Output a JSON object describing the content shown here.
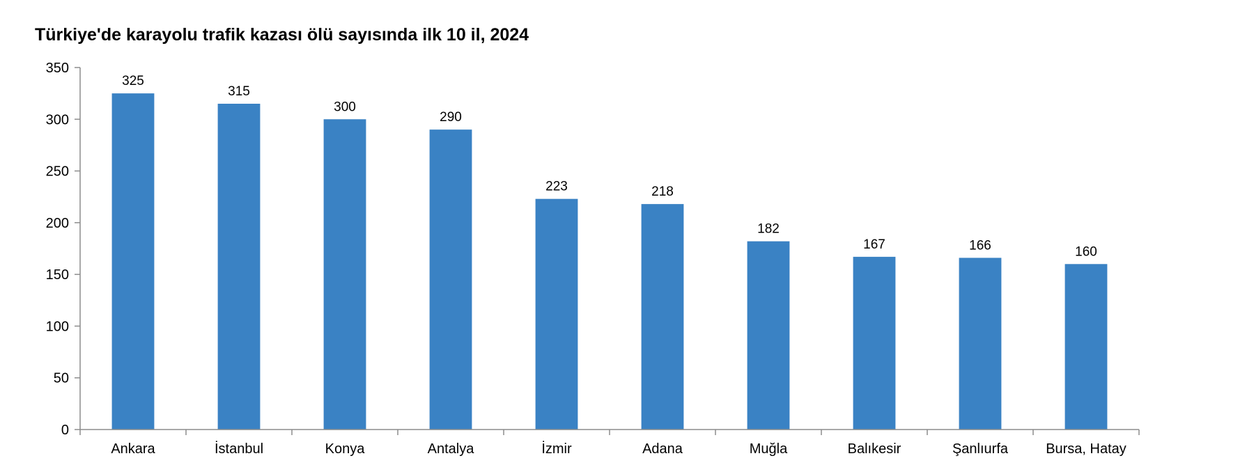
{
  "chart_data": {
    "type": "bar",
    "title": "Türkiye'de karayolu trafik kazası ölü sayısında ilk 10 il, 2024",
    "xlabel": "",
    "ylabel": "",
    "categories": [
      "Ankara",
      "İstanbul",
      "Konya",
      "Antalya",
      "İzmir",
      "Adana",
      "Muğla",
      "Balıkesir",
      "Şanlıurfa",
      "Bursa, Hatay"
    ],
    "values": [
      325,
      315,
      300,
      290,
      223,
      218,
      182,
      167,
      166,
      160
    ],
    "ylim": [
      0,
      350
    ],
    "yticks": [
      0,
      50,
      100,
      150,
      200,
      250,
      300,
      350
    ],
    "data_labels": true,
    "grid": false,
    "legend": "none",
    "bar_color": "#3a82c4"
  }
}
